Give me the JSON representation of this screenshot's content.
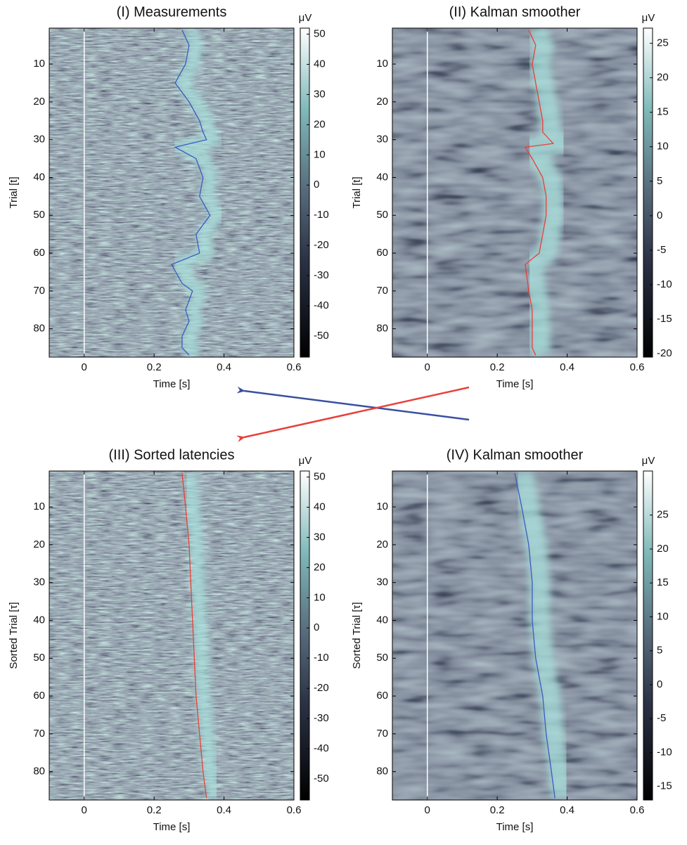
{
  "chart_data": [
    {
      "type": "heatmap",
      "title": "(I) Measurements",
      "xlabel": "Time [s]",
      "ylabel": "Trial [t]",
      "xlim": [
        -0.1,
        0.6
      ],
      "xticks": [
        0,
        0.2,
        0.4,
        0.6
      ],
      "ylim": [
        0.5,
        87.5
      ],
      "yticks": [
        10,
        20,
        30,
        40,
        50,
        60,
        70,
        80
      ],
      "colorbar_label": "μV",
      "clim": [
        -57,
        52
      ],
      "cticks": [
        50,
        40,
        30,
        20,
        10,
        0,
        -10,
        -20,
        -30,
        -40,
        -50
      ],
      "vline": 0,
      "smooth": false,
      "line": {
        "color": "#3a5cc0",
        "trial": [
          1,
          5,
          10,
          15,
          20,
          25,
          28,
          30,
          32,
          35,
          40,
          45,
          50,
          55,
          60,
          63,
          68,
          70,
          75,
          78,
          82,
          85,
          87
        ],
        "time": [
          0.28,
          0.3,
          0.29,
          0.26,
          0.3,
          0.33,
          0.34,
          0.35,
          0.26,
          0.32,
          0.34,
          0.33,
          0.36,
          0.32,
          0.33,
          0.25,
          0.28,
          0.31,
          0.29,
          0.3,
          0.28,
          0.28,
          0.3
        ]
      }
    },
    {
      "type": "heatmap",
      "title": "(II) Kalman smoother",
      "xlabel": "Time [s]",
      "ylabel": "Trial [t]",
      "xlim": [
        -0.1,
        0.6
      ],
      "xticks": [
        0,
        0.2,
        0.4,
        0.6
      ],
      "ylim": [
        0.5,
        87.5
      ],
      "yticks": [
        10,
        20,
        30,
        40,
        50,
        60,
        70,
        80
      ],
      "colorbar_label": "μV",
      "clim": [
        -20.5,
        27.2
      ],
      "cticks": [
        25,
        20,
        15,
        10,
        5,
        0,
        -5,
        -10,
        -15,
        -20
      ],
      "vline": 0,
      "smooth": true,
      "line": {
        "color": "#e8403a",
        "trial": [
          1,
          5,
          10,
          15,
          20,
          25,
          28,
          31,
          32,
          35,
          40,
          45,
          50,
          55,
          60,
          63,
          70,
          75,
          80,
          85,
          87
        ],
        "time": [
          0.29,
          0.31,
          0.3,
          0.31,
          0.32,
          0.33,
          0.33,
          0.36,
          0.28,
          0.3,
          0.33,
          0.34,
          0.34,
          0.33,
          0.32,
          0.28,
          0.29,
          0.3,
          0.3,
          0.3,
          0.31
        ]
      }
    },
    {
      "type": "heatmap",
      "title": "(III) Sorted latencies",
      "xlabel": "Time [s]",
      "ylabel": "Sorted Trial [τ]",
      "xlim": [
        -0.1,
        0.6
      ],
      "xticks": [
        0,
        0.2,
        0.4,
        0.6
      ],
      "ylim": [
        0.5,
        87.5
      ],
      "yticks": [
        10,
        20,
        30,
        40,
        50,
        60,
        70,
        80
      ],
      "colorbar_label": "μV",
      "clim": [
        -57,
        52
      ],
      "cticks": [
        50,
        40,
        30,
        20,
        10,
        0,
        -10,
        -20,
        -30,
        -40,
        -50
      ],
      "vline": 0,
      "smooth": false,
      "line": {
        "color": "#e8403a",
        "trial": [
          1,
          10,
          20,
          30,
          40,
          50,
          60,
          70,
          80,
          87
        ],
        "time": [
          0.28,
          0.29,
          0.3,
          0.305,
          0.31,
          0.315,
          0.32,
          0.33,
          0.34,
          0.35
        ]
      }
    },
    {
      "type": "heatmap",
      "title": "(IV) Kalman smoother",
      "xlabel": "Time [s]",
      "ylabel": "Sorted Trial [τ]",
      "xlim": [
        -0.1,
        0.6
      ],
      "xticks": [
        0,
        0.2,
        0.4,
        0.6
      ],
      "ylim": [
        0.5,
        87.5
      ],
      "yticks": [
        10,
        20,
        30,
        40,
        50,
        60,
        70,
        80
      ],
      "colorbar_label": "μV",
      "clim": [
        -17,
        31.5
      ],
      "cticks": [
        25,
        20,
        15,
        10,
        5,
        0,
        -5,
        -10,
        -15
      ],
      "vline": 0,
      "smooth": true,
      "line": {
        "color": "#3a5cc0",
        "trial": [
          1,
          10,
          20,
          30,
          40,
          50,
          60,
          70,
          80,
          87
        ],
        "time": [
          0.25,
          0.27,
          0.29,
          0.3,
          0.3,
          0.31,
          0.33,
          0.34,
          0.355,
          0.365
        ]
      }
    }
  ]
}
